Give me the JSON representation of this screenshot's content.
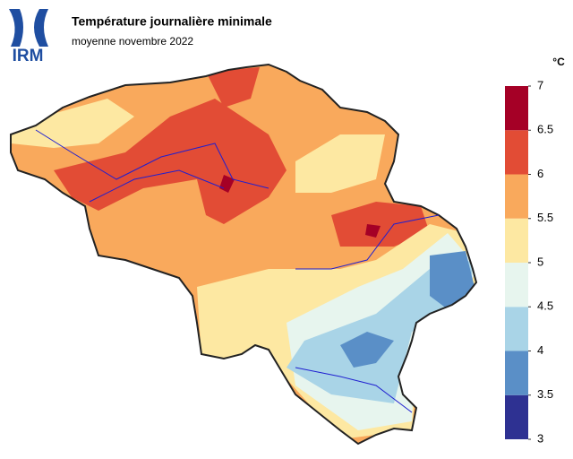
{
  "logo": "IRM",
  "header": {
    "title": "Température journalière minimale",
    "subtitle": "moyenne novembre 2022"
  },
  "legend": {
    "unit": "°C",
    "ticks": [
      3,
      3.5,
      4,
      4.5,
      5,
      5.5,
      6,
      6.5,
      7
    ],
    "colors": [
      "#2e3192",
      "#5a8fc7",
      "#a9d4e7",
      "#e7f5ee",
      "#fde8a2",
      "#f9a95c",
      "#e24c35",
      "#a50026"
    ]
  }
}
